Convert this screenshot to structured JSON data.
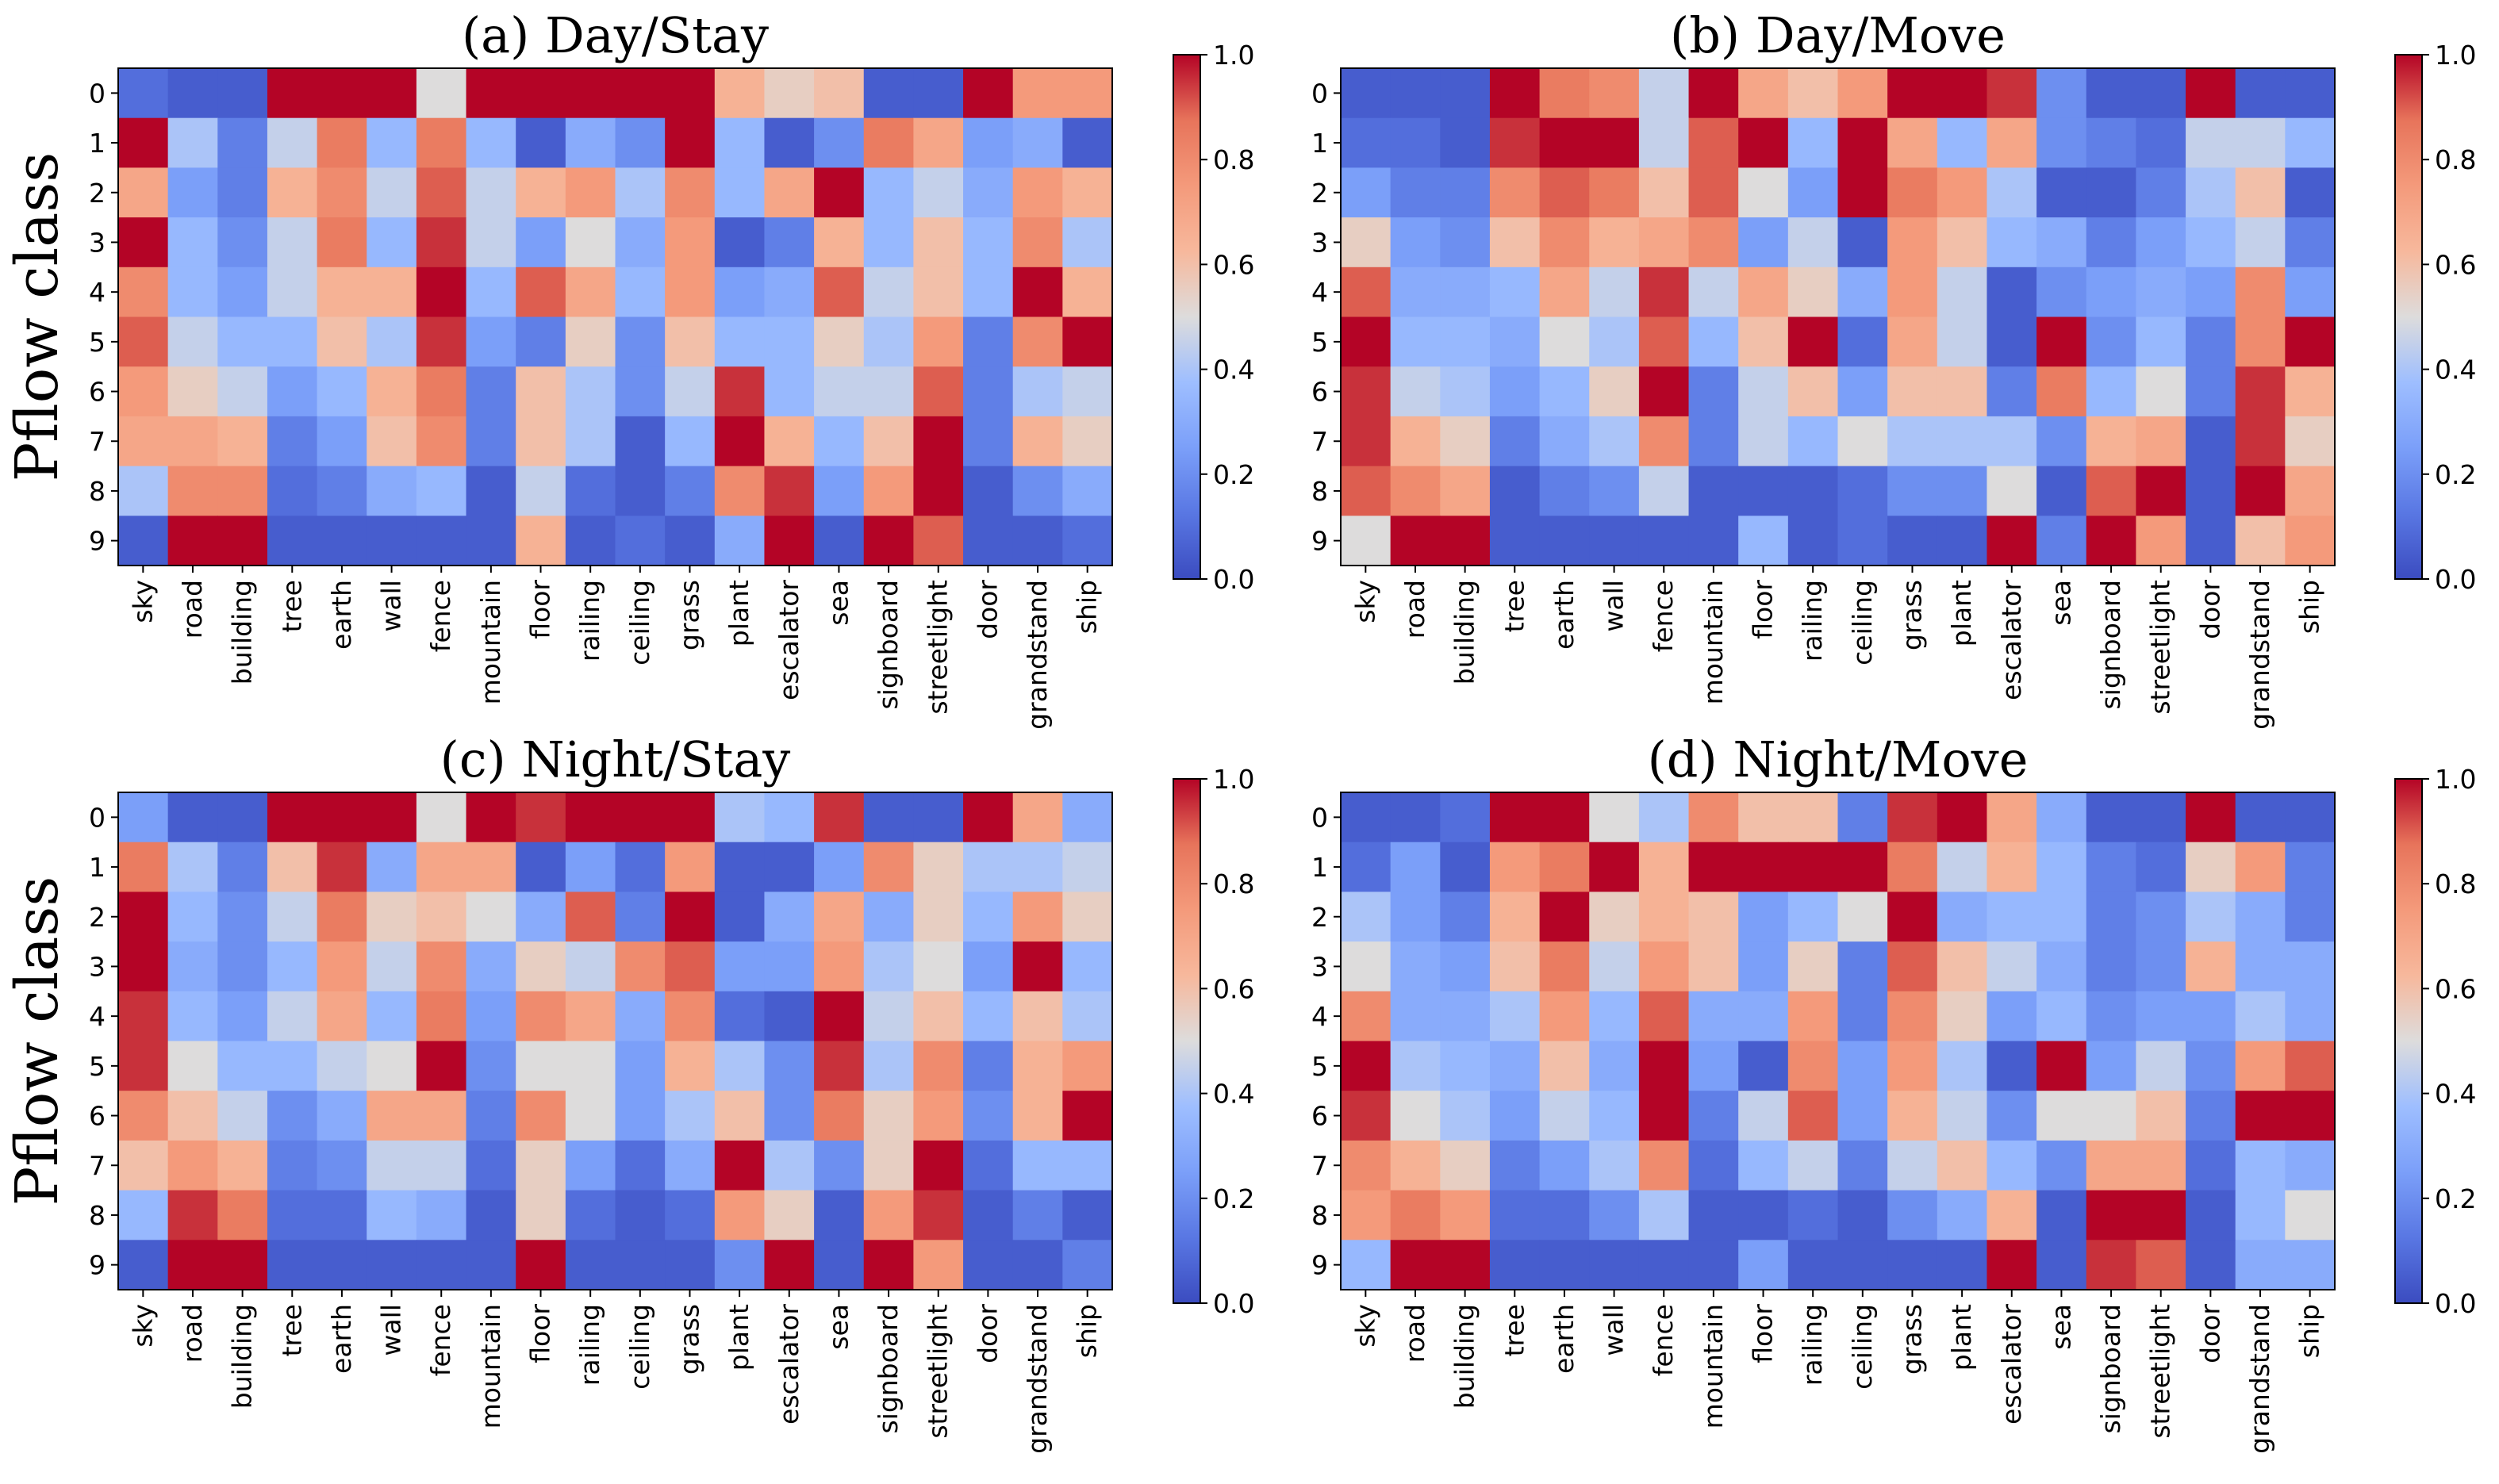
{
  "chart_data": [
    {
      "type": "heatmap",
      "title": "(a) Day/Stay",
      "ylabel": "Pflow class",
      "xlabel": "",
      "x_categories": [
        "sky",
        "road",
        "building",
        "tree",
        "earth",
        "wall",
        "fence",
        "mountain",
        "floor",
        "railing",
        "ceiling",
        "grass",
        "plant",
        "escalator",
        "sea",
        "signboard",
        "streetlight",
        "door",
        "grandstand",
        "ship"
      ],
      "y_categories": [
        "0",
        "1",
        "2",
        "3",
        "4",
        "5",
        "6",
        "7",
        "8",
        "9"
      ],
      "colorbar": {
        "min": 0.0,
        "max": 1.0,
        "ticks": [
          "0.0",
          "0.2",
          "0.4",
          "0.6",
          "0.8",
          "1.0"
        ]
      },
      "values": [
        [
          0.1,
          0.05,
          0.05,
          1.0,
          1.0,
          1.0,
          0.5,
          1.0,
          1.0,
          1.0,
          1.0,
          1.0,
          0.65,
          0.55,
          0.6,
          0.05,
          0.05,
          1.0,
          0.75,
          0.75
        ],
        [
          1.0,
          0.4,
          0.15,
          0.45,
          0.85,
          0.35,
          0.85,
          0.35,
          0.05,
          0.3,
          0.2,
          1.0,
          0.35,
          0.05,
          0.2,
          0.85,
          0.7,
          0.25,
          0.3,
          0.05
        ],
        [
          0.7,
          0.25,
          0.15,
          0.65,
          0.8,
          0.45,
          0.9,
          0.45,
          0.65,
          0.75,
          0.4,
          0.8,
          0.35,
          0.7,
          1.0,
          0.35,
          0.45,
          0.3,
          0.75,
          0.65
        ],
        [
          1.0,
          0.35,
          0.2,
          0.45,
          0.85,
          0.35,
          0.95,
          0.45,
          0.25,
          0.5,
          0.3,
          0.75,
          0.05,
          0.15,
          0.65,
          0.35,
          0.6,
          0.35,
          0.8,
          0.4
        ],
        [
          0.8,
          0.35,
          0.25,
          0.45,
          0.65,
          0.65,
          1.0,
          0.35,
          0.9,
          0.7,
          0.35,
          0.75,
          0.25,
          0.3,
          0.9,
          0.45,
          0.6,
          0.35,
          1.0,
          0.65
        ],
        [
          0.9,
          0.45,
          0.35,
          0.35,
          0.6,
          0.4,
          0.95,
          0.25,
          0.15,
          0.55,
          0.2,
          0.6,
          0.35,
          0.35,
          0.55,
          0.4,
          0.75,
          0.15,
          0.8,
          1.0
        ],
        [
          0.75,
          0.55,
          0.45,
          0.25,
          0.35,
          0.65,
          0.85,
          0.15,
          0.6,
          0.4,
          0.2,
          0.45,
          0.95,
          0.35,
          0.45,
          0.45,
          0.9,
          0.15,
          0.4,
          0.45
        ],
        [
          0.7,
          0.7,
          0.65,
          0.15,
          0.25,
          0.6,
          0.8,
          0.15,
          0.6,
          0.4,
          0.05,
          0.35,
          1.0,
          0.65,
          0.35,
          0.6,
          1.0,
          0.15,
          0.65,
          0.55
        ],
        [
          0.4,
          0.8,
          0.8,
          0.1,
          0.15,
          0.3,
          0.35,
          0.05,
          0.45,
          0.1,
          0.05,
          0.15,
          0.8,
          0.95,
          0.25,
          0.75,
          1.0,
          0.05,
          0.2,
          0.3
        ],
        [
          0.05,
          1.0,
          1.0,
          0.05,
          0.05,
          0.05,
          0.05,
          0.05,
          0.65,
          0.05,
          0.1,
          0.05,
          0.3,
          1.0,
          0.05,
          1.0,
          0.9,
          0.05,
          0.05,
          0.1
        ]
      ]
    },
    {
      "type": "heatmap",
      "title": "(b) Day/Move",
      "ylabel": "",
      "xlabel": "",
      "x_categories": [
        "sky",
        "road",
        "building",
        "tree",
        "earth",
        "wall",
        "fence",
        "mountain",
        "floor",
        "railing",
        "ceiling",
        "grass",
        "plant",
        "escalator",
        "sea",
        "signboard",
        "streetlight",
        "door",
        "grandstand",
        "ship"
      ],
      "y_categories": [
        "0",
        "1",
        "2",
        "3",
        "4",
        "5",
        "6",
        "7",
        "8",
        "9"
      ],
      "colorbar": {
        "min": 0.0,
        "max": 1.0,
        "ticks": [
          "0.0",
          "0.2",
          "0.4",
          "0.6",
          "0.8",
          "1.0"
        ]
      },
      "values": [
        [
          0.05,
          0.05,
          0.05,
          1.0,
          0.85,
          0.8,
          0.45,
          1.0,
          0.7,
          0.6,
          0.75,
          1.0,
          1.0,
          0.95,
          0.2,
          0.05,
          0.05,
          1.0,
          0.05,
          0.05
        ],
        [
          0.1,
          0.1,
          0.05,
          0.95,
          1.0,
          1.0,
          0.45,
          0.9,
          1.0,
          0.35,
          1.0,
          0.7,
          0.35,
          0.7,
          0.2,
          0.15,
          0.1,
          0.45,
          0.45,
          0.35
        ],
        [
          0.25,
          0.15,
          0.15,
          0.8,
          0.9,
          0.85,
          0.6,
          0.9,
          0.5,
          0.25,
          1.0,
          0.85,
          0.75,
          0.4,
          0.05,
          0.05,
          0.15,
          0.4,
          0.6,
          0.05
        ],
        [
          0.55,
          0.25,
          0.2,
          0.6,
          0.8,
          0.65,
          0.7,
          0.8,
          0.25,
          0.45,
          0.05,
          0.75,
          0.6,
          0.35,
          0.3,
          0.15,
          0.25,
          0.35,
          0.45,
          0.15
        ],
        [
          0.9,
          0.3,
          0.3,
          0.35,
          0.7,
          0.45,
          0.95,
          0.45,
          0.7,
          0.55,
          0.3,
          0.75,
          0.45,
          0.05,
          0.2,
          0.25,
          0.3,
          0.25,
          0.8,
          0.25
        ],
        [
          1.0,
          0.35,
          0.35,
          0.3,
          0.5,
          0.4,
          0.9,
          0.35,
          0.6,
          1.0,
          0.1,
          0.7,
          0.45,
          0.05,
          1.0,
          0.2,
          0.35,
          0.15,
          0.8,
          1.0
        ],
        [
          0.95,
          0.45,
          0.4,
          0.25,
          0.35,
          0.55,
          1.0,
          0.15,
          0.45,
          0.6,
          0.25,
          0.6,
          0.6,
          0.15,
          0.85,
          0.35,
          0.5,
          0.15,
          0.95,
          0.65
        ],
        [
          0.95,
          0.65,
          0.55,
          0.15,
          0.3,
          0.4,
          0.8,
          0.15,
          0.45,
          0.35,
          0.5,
          0.4,
          0.4,
          0.4,
          0.2,
          0.65,
          0.7,
          0.05,
          0.95,
          0.55
        ],
        [
          0.9,
          0.8,
          0.7,
          0.05,
          0.15,
          0.2,
          0.45,
          0.05,
          0.05,
          0.05,
          0.1,
          0.2,
          0.2,
          0.5,
          0.05,
          0.9,
          1.0,
          0.05,
          1.0,
          0.7
        ],
        [
          0.5,
          1.0,
          1.0,
          0.05,
          0.05,
          0.05,
          0.05,
          0.05,
          0.35,
          0.05,
          0.1,
          0.05,
          0.05,
          1.0,
          0.15,
          1.0,
          0.75,
          0.05,
          0.6,
          0.75
        ]
      ]
    },
    {
      "type": "heatmap",
      "title": "(c) Night/Stay",
      "ylabel": "Pflow class",
      "xlabel": "",
      "x_categories": [
        "sky",
        "road",
        "building",
        "tree",
        "earth",
        "wall",
        "fence",
        "mountain",
        "floor",
        "railing",
        "ceiling",
        "grass",
        "plant",
        "escalator",
        "sea",
        "signboard",
        "streetlight",
        "door",
        "grandstand",
        "ship"
      ],
      "y_categories": [
        "0",
        "1",
        "2",
        "3",
        "4",
        "5",
        "6",
        "7",
        "8",
        "9"
      ],
      "colorbar": {
        "min": 0.0,
        "max": 1.0,
        "ticks": [
          "0.0",
          "0.2",
          "0.4",
          "0.6",
          "0.8",
          "1.0"
        ]
      },
      "values": [
        [
          0.25,
          0.05,
          0.05,
          1.0,
          1.0,
          1.0,
          0.5,
          1.0,
          0.95,
          1.0,
          1.0,
          1.0,
          0.4,
          0.35,
          0.95,
          0.05,
          0.05,
          1.0,
          0.7,
          0.3
        ],
        [
          0.85,
          0.4,
          0.15,
          0.6,
          0.95,
          0.3,
          0.7,
          0.7,
          0.05,
          0.25,
          0.1,
          0.75,
          0.05,
          0.05,
          0.25,
          0.8,
          0.55,
          0.4,
          0.4,
          0.45
        ],
        [
          1.0,
          0.35,
          0.2,
          0.45,
          0.85,
          0.55,
          0.6,
          0.5,
          0.3,
          0.9,
          0.15,
          1.0,
          0.05,
          0.3,
          0.7,
          0.3,
          0.55,
          0.35,
          0.75,
          0.55
        ],
        [
          1.0,
          0.3,
          0.2,
          0.35,
          0.75,
          0.45,
          0.8,
          0.3,
          0.55,
          0.45,
          0.8,
          0.9,
          0.25,
          0.25,
          0.75,
          0.4,
          0.5,
          0.25,
          1.0,
          0.35
        ],
        [
          0.95,
          0.35,
          0.25,
          0.45,
          0.7,
          0.35,
          0.85,
          0.25,
          0.8,
          0.7,
          0.3,
          0.8,
          0.1,
          0.05,
          1.0,
          0.45,
          0.6,
          0.35,
          0.6,
          0.4
        ],
        [
          0.95,
          0.5,
          0.35,
          0.35,
          0.45,
          0.5,
          1.0,
          0.2,
          0.5,
          0.5,
          0.25,
          0.65,
          0.4,
          0.2,
          0.95,
          0.4,
          0.8,
          0.15,
          0.65,
          0.75
        ],
        [
          0.8,
          0.6,
          0.45,
          0.2,
          0.3,
          0.7,
          0.7,
          0.15,
          0.8,
          0.5,
          0.25,
          0.4,
          0.6,
          0.2,
          0.85,
          0.55,
          0.75,
          0.2,
          0.65,
          1.0
        ],
        [
          0.6,
          0.75,
          0.65,
          0.15,
          0.2,
          0.45,
          0.45,
          0.1,
          0.55,
          0.25,
          0.1,
          0.3,
          1.0,
          0.4,
          0.2,
          0.55,
          1.0,
          0.1,
          0.35,
          0.35
        ],
        [
          0.35,
          0.95,
          0.85,
          0.1,
          0.1,
          0.35,
          0.3,
          0.05,
          0.55,
          0.1,
          0.05,
          0.1,
          0.75,
          0.55,
          0.05,
          0.75,
          0.95,
          0.05,
          0.15,
          0.05
        ],
        [
          0.05,
          1.0,
          1.0,
          0.05,
          0.05,
          0.05,
          0.05,
          0.05,
          1.0,
          0.05,
          0.05,
          0.05,
          0.2,
          1.0,
          0.05,
          1.0,
          0.75,
          0.05,
          0.05,
          0.15
        ]
      ]
    },
    {
      "type": "heatmap",
      "title": "(d) Night/Move",
      "ylabel": "",
      "xlabel": "",
      "x_categories": [
        "sky",
        "road",
        "building",
        "tree",
        "earth",
        "wall",
        "fence",
        "mountain",
        "floor",
        "railing",
        "ceiling",
        "grass",
        "plant",
        "escalator",
        "sea",
        "signboard",
        "streetlight",
        "door",
        "grandstand",
        "ship"
      ],
      "y_categories": [
        "0",
        "1",
        "2",
        "3",
        "4",
        "5",
        "6",
        "7",
        "8",
        "9"
      ],
      "colorbar": {
        "min": 0.0,
        "max": 1.0,
        "ticks": [
          "0.0",
          "0.2",
          "0.4",
          "0.6",
          "0.8",
          "1.0"
        ]
      },
      "values": [
        [
          0.05,
          0.05,
          0.1,
          1.0,
          1.0,
          0.5,
          0.4,
          0.8,
          0.6,
          0.6,
          0.15,
          0.95,
          1.0,
          0.7,
          0.3,
          0.05,
          0.05,
          1.0,
          0.05,
          0.05
        ],
        [
          0.1,
          0.25,
          0.05,
          0.75,
          0.85,
          1.0,
          0.65,
          1.0,
          1.0,
          1.0,
          1.0,
          0.85,
          0.45,
          0.65,
          0.35,
          0.15,
          0.1,
          0.55,
          0.75,
          0.15
        ],
        [
          0.4,
          0.25,
          0.15,
          0.65,
          1.0,
          0.55,
          0.65,
          0.6,
          0.25,
          0.35,
          0.5,
          1.0,
          0.3,
          0.35,
          0.35,
          0.15,
          0.2,
          0.4,
          0.3,
          0.15
        ],
        [
          0.5,
          0.3,
          0.25,
          0.6,
          0.85,
          0.45,
          0.75,
          0.6,
          0.25,
          0.55,
          0.15,
          0.9,
          0.6,
          0.45,
          0.3,
          0.15,
          0.2,
          0.65,
          0.3,
          0.3
        ],
        [
          0.8,
          0.3,
          0.3,
          0.4,
          0.75,
          0.35,
          0.9,
          0.3,
          0.3,
          0.75,
          0.15,
          0.8,
          0.55,
          0.25,
          0.35,
          0.2,
          0.25,
          0.25,
          0.4,
          0.3
        ],
        [
          1.0,
          0.4,
          0.35,
          0.3,
          0.6,
          0.3,
          1.0,
          0.25,
          0.05,
          0.8,
          0.25,
          0.75,
          0.4,
          0.05,
          1.0,
          0.25,
          0.45,
          0.2,
          0.75,
          0.9
        ],
        [
          0.95,
          0.5,
          0.4,
          0.25,
          0.45,
          0.35,
          1.0,
          0.15,
          0.45,
          0.9,
          0.25,
          0.65,
          0.45,
          0.2,
          0.5,
          0.5,
          0.6,
          0.15,
          1.0,
          1.0
        ],
        [
          0.8,
          0.65,
          0.55,
          0.15,
          0.25,
          0.4,
          0.8,
          0.1,
          0.35,
          0.45,
          0.15,
          0.45,
          0.6,
          0.35,
          0.2,
          0.7,
          0.7,
          0.1,
          0.35,
          0.3
        ],
        [
          0.75,
          0.85,
          0.75,
          0.1,
          0.1,
          0.2,
          0.4,
          0.05,
          0.05,
          0.1,
          0.05,
          0.2,
          0.3,
          0.65,
          0.05,
          1.0,
          1.0,
          0.05,
          0.35,
          0.5
        ],
        [
          0.35,
          1.0,
          1.0,
          0.05,
          0.05,
          0.05,
          0.05,
          0.05,
          0.25,
          0.05,
          0.05,
          0.05,
          0.05,
          1.0,
          0.05,
          0.95,
          0.9,
          0.05,
          0.3,
          0.3
        ]
      ]
    }
  ]
}
